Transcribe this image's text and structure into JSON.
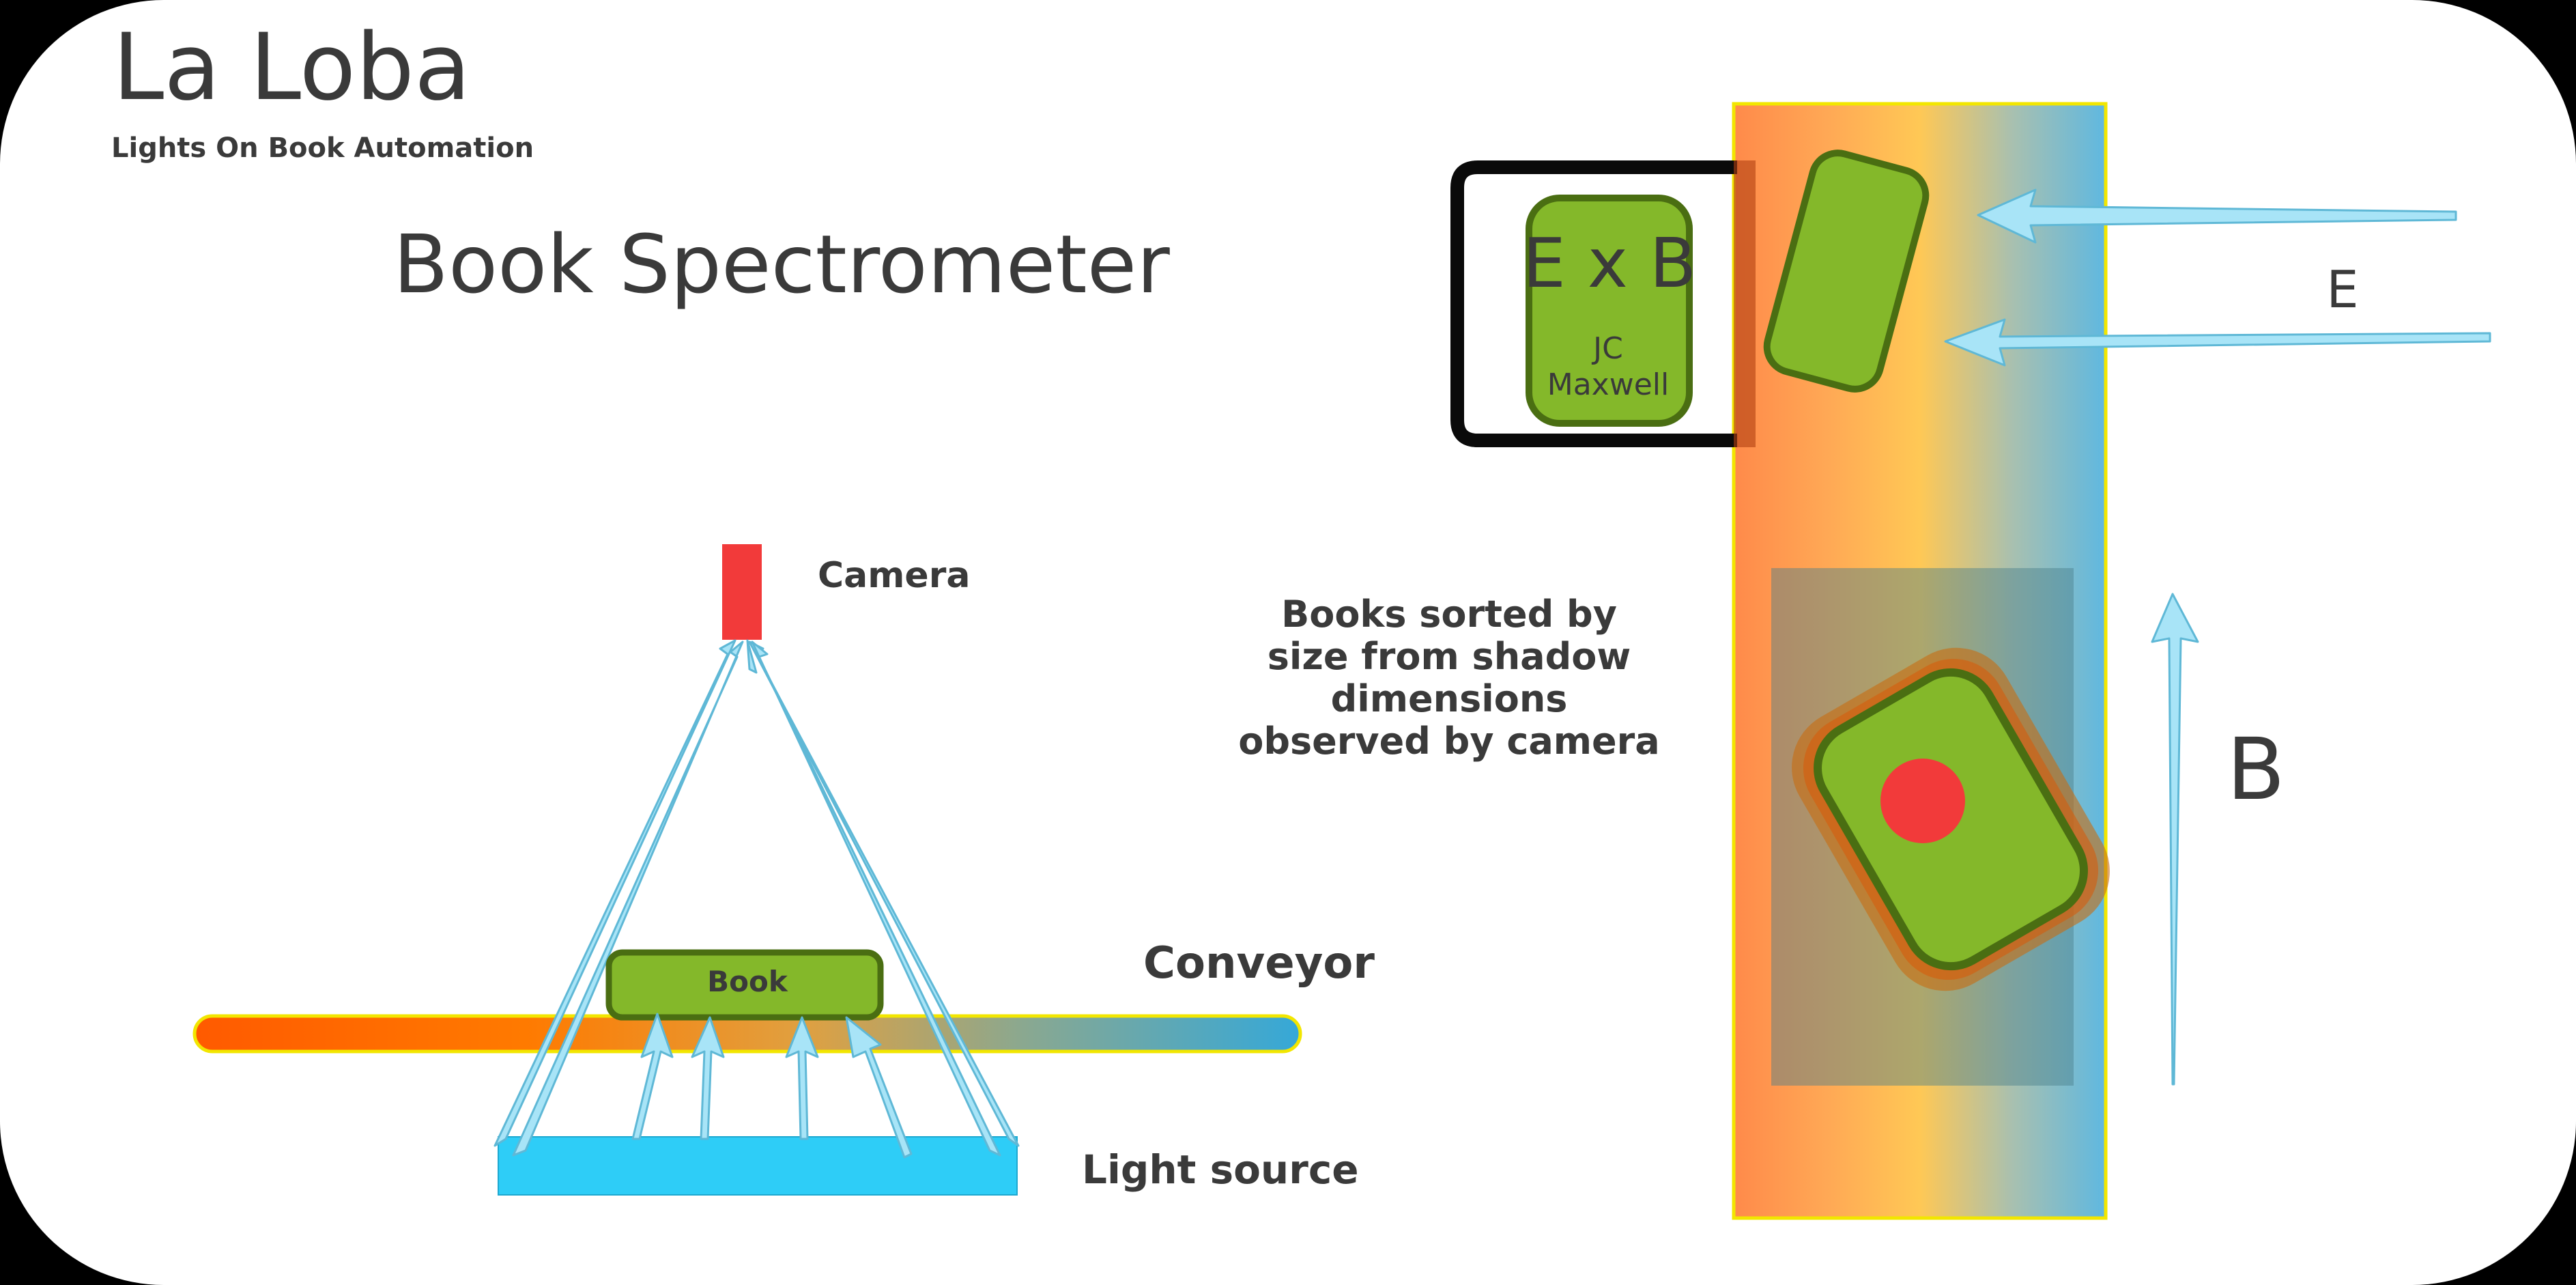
{
  "header": {
    "brand": "La Loba",
    "tagline": "Lights On Book Automation",
    "title": "Book Spectrometer"
  },
  "spectrometer": {
    "camera_label": "Camera",
    "book_label": "Book",
    "conveyor_label": "Conveyor",
    "light_source_label": "Light source"
  },
  "sorter": {
    "box_title": "E x B",
    "box_credit_line1": "JC",
    "box_credit_line2": "Maxwell",
    "e_field_label": "E",
    "b_field_label": "B",
    "description_lines": [
      "Books sorted  by",
      "size from shadow",
      "dimensions",
      "observed by camera"
    ]
  },
  "colors": {
    "camera": "#f23a3a",
    "book_fill": "#84b82a",
    "book_stroke": "#4a6e12",
    "light_source": "#2ecdf7",
    "ray_fill": "#a8e4f7",
    "ray_stroke": "#5fb8d6",
    "conveyor_start": "#ff5a00",
    "conveyor_end": "#35a8d8",
    "chute_left": "#ff9050",
    "chute_mid": "#ffc855",
    "chute_right": "#5fb8e0",
    "sort_dot": "#f23a3a",
    "text": "#3a3a3a"
  }
}
